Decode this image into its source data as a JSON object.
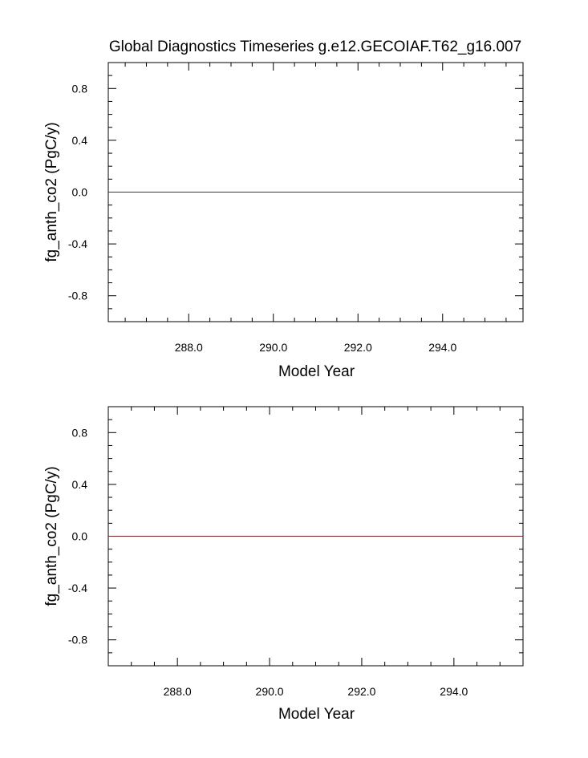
{
  "title": "Global Diagnostics Timeseries g.e12.GECOIAF.T62_g16.007",
  "colors": {
    "series_line": "#7a1f1f",
    "axis": "#000000"
  },
  "chart_data": [
    {
      "type": "line",
      "xlabel": "Model Year",
      "ylabel": "fg_anth_co2 (PgC/y)",
      "xlim": [
        286.1,
        295.9
      ],
      "ylim": [
        -1.0,
        1.0
      ],
      "x_ticks": [
        "288.0",
        "290.0",
        "292.0",
        "294.0"
      ],
      "x_tick_values": [
        288,
        290,
        292,
        294
      ],
      "y_ticks": [
        "0.8",
        "0.4",
        "0.0",
        "-0.4",
        "-0.8"
      ],
      "y_tick_values": [
        0.8,
        0.4,
        0.0,
        -0.4,
        -0.8
      ],
      "grid": false,
      "series": [
        {
          "x": [
            286.1,
            287,
            288,
            289,
            290,
            291,
            292,
            293,
            294,
            295,
            295.9
          ],
          "values": [
            0,
            0,
            0,
            0,
            0,
            0,
            0,
            0,
            0,
            0,
            0
          ]
        }
      ]
    },
    {
      "type": "line",
      "xlabel": "Model Year",
      "ylabel": "fg_anth_co2 (PgC/y)",
      "xlim": [
        286.5,
        295.5
      ],
      "ylim": [
        -1.0,
        1.0
      ],
      "x_ticks": [
        "288.0",
        "290.0",
        "292.0",
        "294.0"
      ],
      "x_tick_values": [
        288,
        290,
        292,
        294
      ],
      "y_ticks": [
        "0.8",
        "0.4",
        "0.0",
        "-0.4",
        "-0.8"
      ],
      "y_tick_values": [
        0.8,
        0.4,
        0.0,
        -0.4,
        -0.8
      ],
      "grid": false,
      "series": [
        {
          "x": [
            286.5,
            287,
            288,
            289,
            290,
            291,
            292,
            293,
            294,
            295,
            295.5
          ],
          "values": [
            0,
            0,
            0,
            0,
            0,
            0,
            0,
            0,
            0,
            0,
            0
          ]
        }
      ]
    }
  ]
}
